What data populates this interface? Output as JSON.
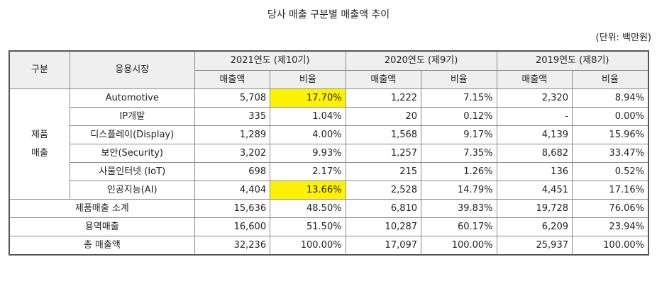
{
  "title": "당사 매출 구분별 매출액 추이",
  "unit": "(단위: 백만원)",
  "headers": {
    "col_group": "구분",
    "col_market": "응용시장",
    "years": [
      "2021연도 (제10기)",
      "2020연도 (제9기)",
      "2019연도 (제8기)"
    ],
    "sales": "매출액",
    "ratio": "비율"
  },
  "group_label": [
    "제품",
    "매출"
  ],
  "rows": [
    {
      "market": "Automotive",
      "v": [
        "5,708",
        "17.70%",
        "1,222",
        "7.15%",
        "2,320",
        "8.94%"
      ],
      "highlight": true
    },
    {
      "market": "IP개발",
      "v": [
        "335",
        "1.04%",
        "20",
        "0.12%",
        "-",
        "0.00%"
      ],
      "highlight": false
    },
    {
      "market": "디스플레이(Display)",
      "v": [
        "1,289",
        "4.00%",
        "1,568",
        "9.17%",
        "4,139",
        "15.96%"
      ],
      "highlight": false
    },
    {
      "market": "보안(Security)",
      "v": [
        "3,202",
        "9.93%",
        "1,257",
        "7.35%",
        "8,682",
        "33.47%"
      ],
      "highlight": false
    },
    {
      "market": "사물인터넷 (IoT)",
      "v": [
        "698",
        "2.17%",
        "215",
        "1.26%",
        "136",
        "0.52%"
      ],
      "highlight": false
    },
    {
      "market": "인공지능(AI)",
      "v": [
        "4,404",
        "13.66%",
        "2,528",
        "14.79%",
        "4,451",
        "17.16%"
      ],
      "highlight": true
    }
  ],
  "summary_rows": [
    {
      "label": "제품매출 소계",
      "v": [
        "15,636",
        "48.50%",
        "6,810",
        "39.83%",
        "19,728",
        "76.06%"
      ]
    },
    {
      "label": "용역매출",
      "v": [
        "16,600",
        "51.50%",
        "10,287",
        "60.17%",
        "6,209",
        "23.94%"
      ]
    },
    {
      "label": "총 매출액",
      "v": [
        "32,236",
        "100.00%",
        "17,097",
        "100.00%",
        "25,937",
        "100.00%"
      ]
    }
  ]
}
